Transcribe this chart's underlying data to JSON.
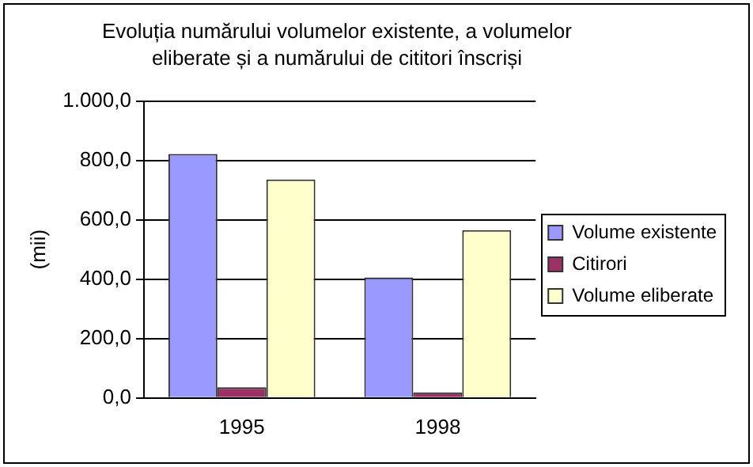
{
  "chart_data": {
    "type": "bar",
    "title": "Evoluția numărului volumelor existente, a volumelor eliberate și a numărului de cititori înscriși",
    "ylabel": "(mii)",
    "categories": [
      "1995",
      "1998"
    ],
    "series": [
      {
        "name": "Volume existente",
        "color": "#9999ff",
        "values": [
          822,
          406
        ]
      },
      {
        "name": "Citirori",
        "color": "#993366",
        "values": [
          36,
          19
        ]
      },
      {
        "name": "Volume eliberate",
        "color": "#ffffcc",
        "values": [
          736,
          565
        ]
      }
    ],
    "ylim": [
      0,
      1000
    ],
    "yticks": [
      {
        "value": 0,
        "label": "0,0"
      },
      {
        "value": 200,
        "label": "200,0"
      },
      {
        "value": 400,
        "label": "400,0"
      },
      {
        "value": 600,
        "label": "600,0"
      },
      {
        "value": 800,
        "label": "800,0"
      },
      {
        "value": 1000,
        "label": "1.000,0"
      }
    ],
    "grid": "y",
    "legend": "right"
  }
}
